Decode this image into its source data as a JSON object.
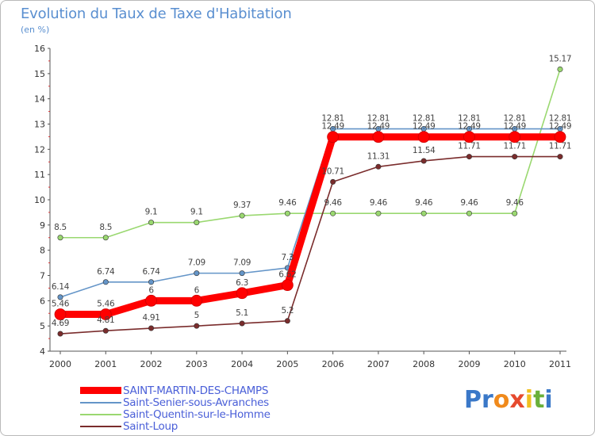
{
  "header": {
    "title": "Evolution du Taux de Taxe d'Habitation",
    "subtitle": "(en %)"
  },
  "logo": {
    "text": "Proxiti",
    "letter_colors": [
      "#3a78c8",
      "#3a78c8",
      "#f08a1c",
      "#e64a2e",
      "#f0c020",
      "#6ab03a",
      "#3a78c8"
    ]
  },
  "chart_data": {
    "type": "line",
    "title": "Evolution du Taux de Taxe d'Habitation",
    "subtitle": "(en %)",
    "xlabel": "",
    "ylabel": "",
    "x": [
      "2000",
      "2001",
      "2002",
      "2003",
      "2004",
      "2005",
      "2006",
      "2007",
      "2008",
      "2009",
      "2010",
      "2011"
    ],
    "ylim": [
      4,
      16
    ],
    "yticks": [
      "4",
      "5",
      "6",
      "7",
      "8",
      "9",
      "10",
      "11",
      "12",
      "13",
      "14",
      "15",
      "16"
    ],
    "grid": false,
    "legend_position": "bottom-left",
    "series": [
      {
        "name": "SAINT-MARTIN-DES-CHAMPS",
        "color": "#ff0000",
        "emphasis": true,
        "values": [
          5.46,
          5.46,
          6,
          6,
          6.3,
          6.62,
          12.49,
          12.49,
          12.49,
          12.49,
          12.49,
          12.49
        ],
        "labels": [
          "5.46",
          "5.46",
          "6",
          "6",
          "6.3",
          "6.62",
          "12.49",
          "12.49",
          "12.49",
          "12.49",
          "12.49",
          "12.49"
        ]
      },
      {
        "name": "Saint-Senier-sous-Avranches",
        "color": "#6495c8",
        "values": [
          6.14,
          6.74,
          6.74,
          7.09,
          7.09,
          7.3,
          12.81,
          12.81,
          12.81,
          12.81,
          12.81,
          12.81
        ],
        "labels": [
          "6.14",
          "6.74",
          "6.74",
          "7.09",
          "7.09",
          "7.3",
          "12.81",
          "12.81",
          "12.81",
          "12.81",
          "12.81",
          "12.81"
        ]
      },
      {
        "name": "Saint-Quentin-sur-le-Homme",
        "color": "#9ad870",
        "values": [
          8.5,
          8.5,
          9.1,
          9.1,
          9.37,
          9.46,
          9.46,
          9.46,
          9.46,
          9.46,
          9.46,
          15.17
        ],
        "labels": [
          "8.5",
          "8.5",
          "9.1",
          "9.1",
          "9.37",
          "9.46",
          "9.46",
          "9.46",
          "9.46",
          "9.46",
          "9.46",
          "15.17"
        ]
      },
      {
        "name": "Saint-Loup",
        "color": "#7a2c2c",
        "values": [
          4.69,
          4.81,
          4.91,
          5,
          5.1,
          5.2,
          10.71,
          11.31,
          11.54,
          11.71,
          11.71,
          11.71
        ],
        "labels": [
          "4.69",
          "4.81",
          "4.91",
          "5",
          "5.1",
          "5.2",
          "10.71",
          "11.31",
          "11.54",
          "11.71",
          "11.71",
          "11.71"
        ]
      }
    ]
  }
}
